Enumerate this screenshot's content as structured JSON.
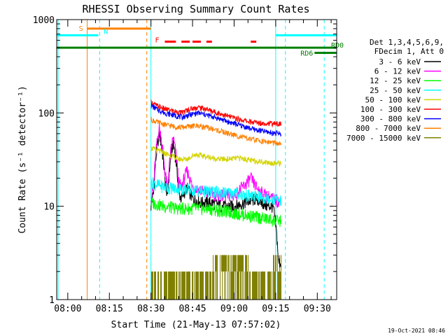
{
  "chart_data": {
    "type": "line",
    "title": "RHESSI Observing Summary Count Rates",
    "xlabel": "Start Time (21-May-13 07:57:02)",
    "ylabel": "Count Rate (s⁻¹ detector⁻¹)",
    "y_scale": "log",
    "ylim": [
      1,
      1000
    ],
    "xlim_minutes": [
      -4,
      97
    ],
    "x_ticks": [
      {
        "label": "08:00",
        "minute": 0
      },
      {
        "label": "08:15",
        "minute": 15
      },
      {
        "label": "08:30",
        "minute": 30
      },
      {
        "label": "08:45",
        "minute": 45
      },
      {
        "label": "09:00",
        "minute": 60
      },
      {
        "label": "09:15",
        "minute": 75
      },
      {
        "label": "09:30",
        "minute": 90
      }
    ],
    "y_ticks": [
      {
        "label": "1",
        "value": 1
      },
      {
        "label": "10",
        "value": 10
      },
      {
        "label": "100",
        "value": 100
      },
      {
        "label": "1000",
        "value": 1000
      }
    ],
    "legend": {
      "header": [
        "Det 1,3,4,5,6,9,",
        "FDecim 1, Att 0"
      ],
      "position": "right",
      "entries": [
        {
          "label": "3 - 6 keV",
          "color": "#000000"
        },
        {
          "label": "6 - 12 keV",
          "color": "#ff00ff"
        },
        {
          "label": "12 - 25 keV",
          "color": "#00ff00"
        },
        {
          "label": "25 - 50 keV",
          "color": "#00ffff"
        },
        {
          "label": "50 - 100 keV",
          "color": "#d4d400"
        },
        {
          "label": "100 - 300 keV",
          "color": "#ff0000"
        },
        {
          "label": "300 - 800 keV",
          "color": "#0000ff"
        },
        {
          "label": "800 - 7000 keV",
          "color": "#ff8000"
        },
        {
          "label": "7000 - 15000 keV",
          "color": "#808000"
        }
      ]
    },
    "data_window_minutes": [
      30,
      77
    ],
    "series": [
      {
        "name": "3 - 6 keV",
        "color": "#000000",
        "x": [
          30,
          31,
          33,
          35,
          36,
          38,
          40,
          41,
          43,
          45,
          48,
          52,
          56,
          60,
          64,
          68,
          72,
          74,
          76,
          77
        ],
        "y": [
          10,
          14,
          60,
          20,
          12,
          48,
          14,
          12,
          16,
          12,
          11,
          11,
          10,
          10,
          11,
          12,
          10,
          10,
          2.5,
          2.5
        ]
      },
      {
        "name": "6 - 12 keV",
        "color": "#ff00ff",
        "x": [
          30,
          31,
          33,
          35,
          36,
          38,
          40,
          41,
          43,
          45,
          50,
          55,
          60,
          64,
          66,
          68,
          70,
          72,
          74,
          77
        ],
        "y": [
          12,
          16,
          70,
          24,
          15,
          55,
          18,
          16,
          24,
          16,
          14,
          13,
          13,
          17,
          20,
          16,
          14,
          13,
          12,
          11
        ]
      },
      {
        "name": "12 - 25 keV",
        "color": "#00ff00",
        "x": [
          30,
          35,
          40,
          45,
          50,
          55,
          60,
          65,
          70,
          75,
          77
        ],
        "y": [
          11,
          10,
          9.5,
          9.5,
          9.5,
          9.0,
          8.5,
          8.0,
          7.5,
          7.0,
          7.0
        ]
      },
      {
        "name": "25 - 50 keV",
        "color": "#00ffff",
        "x": [
          30,
          35,
          40,
          45,
          50,
          55,
          60,
          65,
          70,
          75,
          77
        ],
        "y": [
          18,
          16,
          15.5,
          15,
          14.5,
          14,
          14,
          13,
          12.5,
          12,
          11.5
        ]
      },
      {
        "name": "50 - 100 keV",
        "color": "#d4d400",
        "x": [
          30,
          32,
          35,
          38,
          40,
          43,
          46,
          50,
          54,
          58,
          62,
          66,
          70,
          74,
          77
        ],
        "y": [
          42,
          40,
          37,
          34,
          32,
          32,
          36,
          34,
          32,
          32,
          33,
          31,
          30,
          29,
          29
        ]
      },
      {
        "name": "100 - 300 keV",
        "color": "#ff0000",
        "x": [
          30,
          32,
          35,
          38,
          41,
          44,
          47,
          50,
          54,
          58,
          62,
          66,
          70,
          74,
          77
        ],
        "y": [
          130,
          120,
          110,
          105,
          100,
          110,
          115,
          110,
          100,
          92,
          85,
          80,
          78,
          77,
          76
        ]
      },
      {
        "name": "300 - 800 keV",
        "color": "#0000ff",
        "x": [
          30,
          32,
          35,
          38,
          41,
          44,
          47,
          50,
          54,
          58,
          62,
          66,
          70,
          74,
          77
        ],
        "y": [
          120,
          110,
          100,
          95,
          90,
          95,
          100,
          95,
          88,
          80,
          74,
          68,
          64,
          61,
          60
        ]
      },
      {
        "name": "800 - 7000 keV",
        "color": "#ff8000",
        "x": [
          30,
          32,
          35,
          38,
          41,
          44,
          47,
          50,
          54,
          58,
          62,
          66,
          70,
          74,
          77
        ],
        "y": [
          85,
          80,
          75,
          72,
          70,
          72,
          73,
          70,
          65,
          60,
          56,
          52,
          50,
          48,
          46
        ]
      }
    ],
    "bands_7000_15000": [
      {
        "x_start": 30,
        "x_end": 77,
        "y_low": 1,
        "y_high": 2
      },
      {
        "x_start": 52,
        "x_end": 65,
        "y_low": 2,
        "y_high": 3
      },
      {
        "x_start": 74,
        "x_end": 77,
        "y_low": 2,
        "y_high": 3
      }
    ],
    "state_bars": [
      {
        "label": "S",
        "color": "#ff8000",
        "x_start": 7,
        "x_end": 30,
        "level": 800
      },
      {
        "label": "N",
        "color": "#00ffff",
        "x_start": -4,
        "x_end": 11,
        "level": 680
      },
      {
        "label": "N",
        "color": "#00ffff",
        "x_start": 75,
        "x_end": 97,
        "level": 680
      },
      {
        "label": "RD0",
        "color": "#008000",
        "x_start": -4,
        "x_end": 97,
        "level": 500
      },
      {
        "label": "RD6",
        "color": "#008000",
        "x_start": 89,
        "x_end": 97,
        "level": 440
      }
    ],
    "flare_marks": {
      "label": "F",
      "color": "#ff0000",
      "level": 580,
      "segments": [
        [
          35,
          39
        ],
        [
          41,
          44
        ],
        [
          45,
          48
        ],
        [
          50,
          52
        ],
        [
          66,
          68
        ]
      ]
    },
    "vlines": [
      {
        "minute": -3.5,
        "color": "#00ffff",
        "style": "solid"
      },
      {
        "minute": 7,
        "color": "#ff8000",
        "style": "solid"
      },
      {
        "minute": 11.5,
        "color": "#00ffff",
        "style": "dashed"
      },
      {
        "minute": 28.5,
        "color": "#ff8000",
        "style": "dashed"
      },
      {
        "minute": 30,
        "color": "#00ffff",
        "style": "solid"
      },
      {
        "minute": 75,
        "color": "#00ffff",
        "style": "solid"
      },
      {
        "minute": 78.5,
        "color": "#00ffff",
        "style": "dashed"
      },
      {
        "minute": 92.5,
        "color": "#00ffff",
        "style": "dashed"
      }
    ],
    "footer_date": "19-Oct-2021 08:46"
  }
}
